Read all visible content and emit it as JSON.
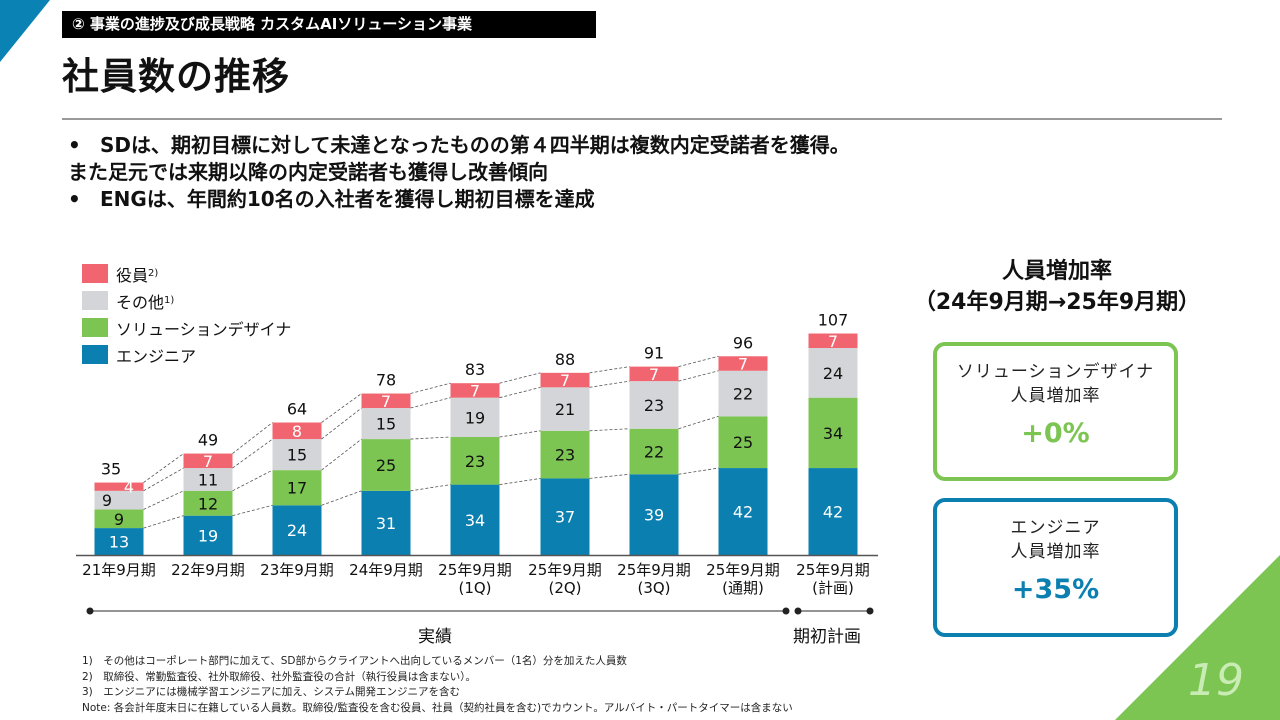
{
  "header": {
    "section_tag": "② 事業の進捗及び成長戦略 カスタムAIソリューション事業",
    "title": "社員数の推移"
  },
  "bullets": [
    {
      "lines": [
        "SDは、期初目標に対して未達となったものの第４四半期は複数内定受諾者を獲得。",
        "また足元では来期以降の内定受諾者も獲得し改善傾向"
      ]
    },
    {
      "lines": [
        "ENGは、年間約10名の入社者を獲得し期初目標を達成"
      ]
    }
  ],
  "legend": [
    {
      "label": "役員",
      "sup": "2)",
      "color": "#f0656f"
    },
    {
      "label": "その他",
      "sup": "1)",
      "color": "#d4d5d8"
    },
    {
      "label": "ソリューションデザイナ",
      "sup": "",
      "color": "#7cc552"
    },
    {
      "label": "エンジニア",
      "sup": "",
      "color": "#0a7fb0"
    }
  ],
  "chart_data": {
    "type": "bar",
    "stacked": true,
    "title": "",
    "xlabel": "",
    "ylabel": "",
    "categories": [
      [
        "21年9月期"
      ],
      [
        "22年9月期"
      ],
      [
        "23年9月期"
      ],
      [
        "24年9月期"
      ],
      [
        "25年9月期",
        "(1Q)"
      ],
      [
        "25年9月期",
        "(2Q)"
      ],
      [
        "25年9月期",
        "(3Q)"
      ],
      [
        "25年9月期",
        "(通期)"
      ],
      [
        "25年9月期",
        "(計画)"
      ]
    ],
    "series": [
      {
        "name": "エンジニア",
        "color": "#0a7fb0",
        "label_color": "#ffffff",
        "values": [
          13,
          19,
          24,
          31,
          34,
          37,
          39,
          42,
          42
        ]
      },
      {
        "name": "ソリューションデザイナ",
        "color": "#7cc552",
        "label_color": "#111111",
        "values": [
          9,
          12,
          17,
          25,
          23,
          23,
          22,
          25,
          34
        ]
      },
      {
        "name": "その他",
        "color": "#d4d5d8",
        "label_color": "#111111",
        "values": [
          9,
          11,
          15,
          15,
          19,
          21,
          23,
          22,
          24
        ]
      },
      {
        "name": "役員",
        "color": "#f0656f",
        "label_color": "#ffffff",
        "values": [
          4,
          7,
          8,
          7,
          7,
          7,
          7,
          7,
          7
        ]
      }
    ],
    "totals": [
      35,
      49,
      64,
      78,
      83,
      88,
      91,
      96,
      107
    ],
    "ylim": [
      0,
      110
    ],
    "grid": false,
    "connector_lines": "dashed, between series boundaries of adjacent actual bars (21年9月期 to 25年9月期(通期))",
    "phases": [
      {
        "label": "実績",
        "from_category": 0,
        "to_category": 7
      },
      {
        "label": "期初計画",
        "from_category": 8,
        "to_category": 8
      }
    ]
  },
  "growth_rate": {
    "title": "人員増加率",
    "subtitle": "（24年9月期→25年9月期）",
    "boxes": [
      {
        "line1": "ソリューションデザイナ",
        "line2": "人員増加率",
        "value": "+0%",
        "color": "#7cc552"
      },
      {
        "line1": "エンジニア",
        "line2": "人員増加率",
        "value": "+35%",
        "color": "#0a7fb0"
      }
    ]
  },
  "notes": [
    "1)　その他はコーポレート部門に加えて、SD部からクライアントへ出向しているメンバー（1名）分を加えた人員数",
    "2)　取締役、常勤監査役、社外取締役、社外監査役の合計（執行役員は含まない）。",
    "3)　エンジニアには機械学習エンジニアに加え、システム開発エンジニアを含む",
    "Note: 各会計年度末日に在籍している人員数。取締役/監査役を含む役員、社員（契約社員を含む)でカウント。アルバイト・パートタイマーは含まない"
  ],
  "page_number": "19"
}
